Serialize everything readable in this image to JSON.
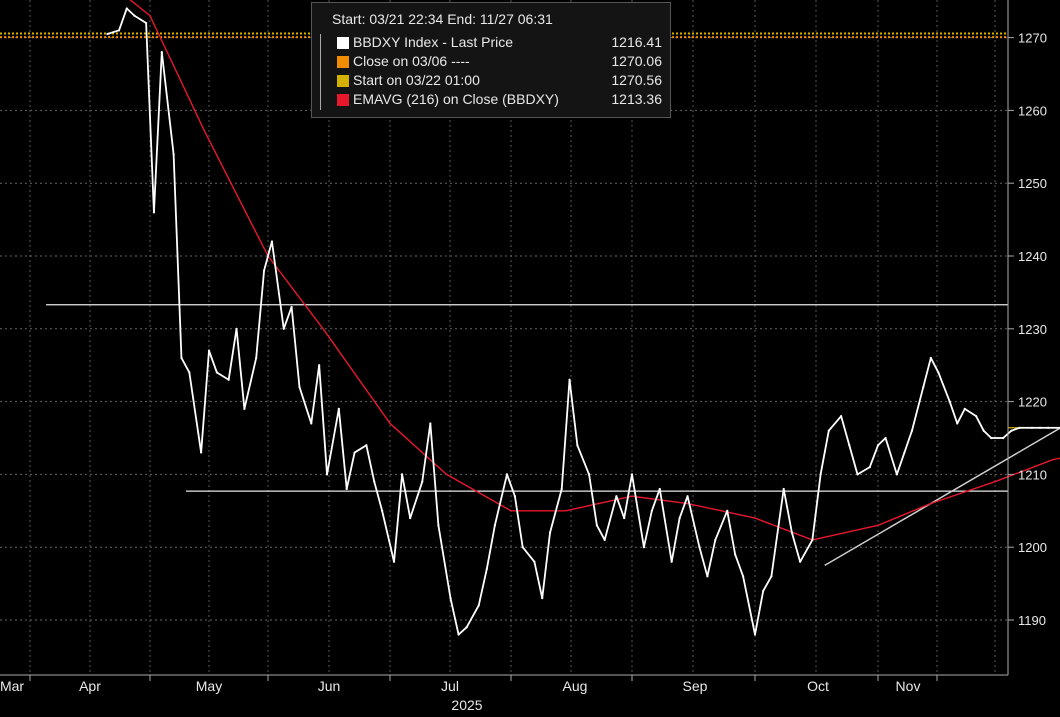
{
  "legend": {
    "header": "Start: 03/21 22:34 End: 11/27 06:31",
    "rows": [
      {
        "label": "BBDXY Index - Last Price",
        "value": "1216.41",
        "color": "#ffffff"
      },
      {
        "label": "Close on 03/06 ----",
        "value": "1270.06",
        "color": "#f08c00"
      },
      {
        "label": "Start on 03/22 01:00",
        "value": "1270.56",
        "color": "#d4b000"
      },
      {
        "label": "EMAVG (216)  on Close (BBDXY)",
        "value": "1213.36",
        "color": "#e8182c"
      }
    ]
  },
  "chart_data": {
    "type": "line",
    "title": "",
    "xlabel": "2025",
    "ylabel": "",
    "ylim": [
      1184,
      1276
    ],
    "yticks": [
      "1190",
      "1200",
      "1210",
      "1220",
      "1230",
      "1240",
      "1250",
      "1260",
      "1270"
    ],
    "xticks": [
      "Mar",
      "Apr",
      "May",
      "Jun",
      "Jul",
      "Aug",
      "Sep",
      "Oct",
      "Nov"
    ],
    "grid": true,
    "series": [
      {
        "name": "BBDXY Index - Last Price",
        "color": "#ffffff",
        "x": [
          "03-21",
          "03-24",
          "03-26",
          "03-28",
          "03-31",
          "04-02",
          "04-04",
          "04-07",
          "04-09",
          "04-11",
          "04-14",
          "04-16",
          "04-18",
          "04-21",
          "04-23",
          "04-25",
          "04-28",
          "04-30",
          "05-02",
          "05-05",
          "05-07",
          "05-09",
          "05-12",
          "05-14",
          "05-16",
          "05-19",
          "05-21",
          "05-23",
          "05-26",
          "05-28",
          "05-30",
          "06-02",
          "06-04",
          "06-06",
          "06-09",
          "06-11",
          "06-13",
          "06-16",
          "06-18",
          "06-20",
          "06-23",
          "06-25",
          "06-27",
          "06-30",
          "07-02",
          "07-04",
          "07-07",
          "07-09",
          "07-11",
          "07-14",
          "07-16",
          "07-18",
          "07-21",
          "07-23",
          "07-25",
          "07-28",
          "07-30",
          "08-01",
          "08-04",
          "08-06",
          "08-08",
          "08-11",
          "08-13",
          "08-15",
          "08-18",
          "08-20",
          "08-22",
          "08-25",
          "08-27",
          "08-29",
          "09-01",
          "09-03",
          "09-05",
          "09-08",
          "09-10",
          "09-12",
          "09-15",
          "09-17",
          "09-19",
          "09-22",
          "09-24",
          "09-26",
          "09-29",
          "10-01",
          "10-03",
          "10-06",
          "10-08",
          "10-10",
          "10-13",
          "10-15",
          "10-17",
          "10-20",
          "10-22",
          "10-24",
          "10-27",
          "10-29",
          "10-31",
          "11-03",
          "11-05",
          "11-07",
          "11-10",
          "11-12",
          "11-14",
          "11-17",
          "11-19",
          "11-21",
          "11-24",
          "11-26"
        ],
        "values": [
          1270.5,
          1271,
          1274,
          1273,
          1272,
          1246,
          1268,
          1254,
          1226,
          1224,
          1213,
          1227,
          1224,
          1223,
          1230,
          1219,
          1226,
          1238,
          1242,
          1230,
          1233,
          1222,
          1217,
          1225,
          1210,
          1219,
          1208,
          1213,
          1214,
          1209,
          1205,
          1198,
          1210,
          1204,
          1209,
          1217,
          1203,
          1193,
          1188,
          1189,
          1192,
          1197,
          1203,
          1210,
          1207,
          1200,
          1198,
          1193,
          1202,
          1208,
          1223,
          1214,
          1210,
          1203,
          1201,
          1207,
          1204,
          1210,
          1200,
          1205,
          1208,
          1198,
          1204,
          1207,
          1200,
          1196,
          1201,
          1205,
          1199,
          1196,
          1188,
          1194,
          1196,
          1208,
          1202,
          1198,
          1201,
          1210,
          1216,
          1218,
          1214,
          1210,
          1211,
          1214,
          1215,
          1210,
          1213,
          1216,
          1222,
          1226,
          1224,
          1220,
          1217,
          1219,
          1218,
          1216,
          1215,
          1215,
          1216,
          1216.4,
          1216.4,
          1216.4,
          1216.4,
          1216.4,
          1216.4,
          1216.4,
          1216.4,
          1216.41
        ]
      },
      {
        "name": "EMAVG (216)  on Close (BBDXY)",
        "color": "#e8182c",
        "x": [
          "03-25",
          "04-01",
          "04-15",
          "05-01",
          "05-15",
          "06-01",
          "06-15",
          "07-01",
          "07-15",
          "08-01",
          "08-15",
          "09-01",
          "09-15",
          "10-01",
          "10-15",
          "11-01",
          "11-15",
          "11-26"
        ],
        "values": [
          1276,
          1273,
          1257,
          1240,
          1230,
          1217,
          1210,
          1205,
          1205,
          1207,
          1206,
          1204,
          1201,
          1203,
          1206,
          1209,
          1212,
          1213.36
        ]
      }
    ],
    "reference_lines": [
      {
        "label": "Close on 03/06",
        "value": 1270.06,
        "color": "#f08c00"
      },
      {
        "label": "Start on 03/22 01:00",
        "value": 1270.56,
        "color": "#d4b000"
      }
    ],
    "horizontal_levels": [
      1233.3,
      1207.7
    ],
    "trendline": {
      "from": [
        "09-18",
        1197.5
      ],
      "to": [
        "12-20",
        1221
      ]
    },
    "last_value_marker": 1216.41
  }
}
